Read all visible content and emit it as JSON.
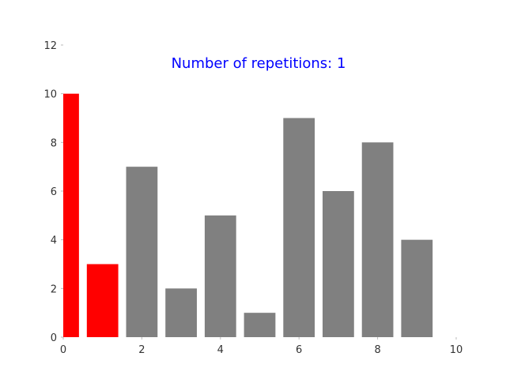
{
  "chart_data": {
    "type": "bar",
    "title": "Number of repetitions: 1",
    "title_color": "#0000ff",
    "xlabel": "",
    "ylabel": "",
    "x": [
      0,
      1,
      2,
      3,
      4,
      5,
      6,
      7,
      8,
      9
    ],
    "values": [
      10,
      3,
      7,
      2,
      5,
      1,
      9,
      6,
      8,
      4
    ],
    "bar_colors": [
      "#ff0000",
      "#ff0000",
      "#808080",
      "#808080",
      "#808080",
      "#808080",
      "#808080",
      "#808080",
      "#808080",
      "#808080"
    ],
    "xlim": [
      0,
      10
    ],
    "ylim": [
      0,
      12
    ],
    "xticks": [
      "0",
      "2",
      "4",
      "6",
      "8",
      "10"
    ],
    "yticks": [
      "0",
      "2",
      "4",
      "6",
      "8",
      "10",
      "12"
    ],
    "grid": false,
    "legend": "none"
  }
}
